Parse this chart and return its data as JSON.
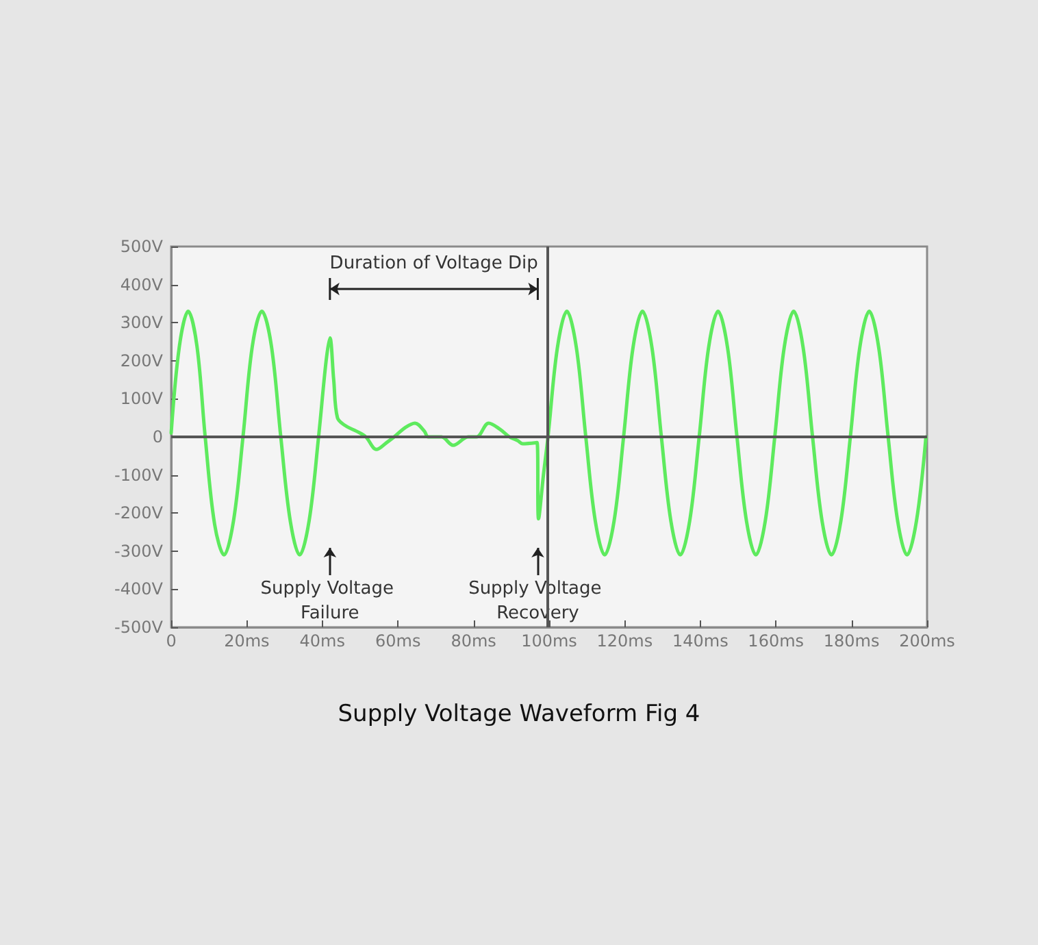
{
  "chart_data": {
    "type": "line",
    "title": "Supply Voltage Waveform Fig 4",
    "series": [
      {
        "color": "#5eea5e",
        "x": [
          0,
          2.2,
          4.5,
          6.8,
          9,
          11.5,
          14,
          16.5,
          19,
          21.5,
          24,
          26.5,
          29,
          31.5,
          34,
          36.5,
          39,
          41,
          42,
          43,
          44,
          46,
          49,
          51.5,
          54.3,
          57,
          59,
          62,
          64.5,
          67,
          68,
          71.5,
          74.6,
          78.6,
          80.8,
          84,
          87,
          89.5,
          91.7,
          93,
          96.8,
          97.2,
          98.5,
          99.7,
          102.2,
          104.7,
          107.2,
          109.7,
          112.2,
          114.7,
          117.2,
          119.7,
          122.2,
          124.7,
          127.2,
          129.7,
          132.2,
          134.7,
          137.2,
          139.7,
          142.2,
          144.7,
          147.2,
          149.7,
          152.2,
          154.7,
          157.2,
          159.7,
          162.2,
          164.7,
          167.2,
          169.7,
          172.2,
          174.7,
          177.2,
          179.7,
          182.2,
          184.7,
          187.2,
          189.7,
          192.2,
          194.7,
          197.2,
          199.7
        ],
        "values": [
          10,
          240,
          330,
          240,
          0,
          -230,
          -310,
          -220,
          0,
          240,
          330,
          240,
          0,
          -220,
          -310,
          -220,
          0,
          200,
          260,
          150,
          50,
          30,
          15,
          0,
          -33,
          -15,
          0,
          25,
          36,
          15,
          0,
          0,
          -22,
          0,
          0,
          36,
          20,
          0,
          -10,
          -18,
          -15,
          -215,
          -100,
          0,
          235,
          330,
          235,
          0,
          -220,
          -310,
          -220,
          0,
          235,
          330,
          235,
          0,
          -220,
          -310,
          -220,
          0,
          235,
          330,
          235,
          0,
          -220,
          -310,
          -220,
          0,
          235,
          330,
          235,
          0,
          -220,
          -310,
          -220,
          0,
          235,
          330,
          235,
          0,
          -220,
          -310,
          -220,
          0
        ]
      }
    ],
    "xlim": [
      0,
      200
    ],
    "xticks": [
      0,
      {
        "value": 20,
        "label": "20ms"
      },
      {
        "value": 40,
        "label": "40ms"
      },
      {
        "value": 60,
        "label": "60ms"
      },
      {
        "value": 80,
        "label": "80ms"
      },
      {
        "value": 100,
        "label": "100ms"
      },
      {
        "value": 120,
        "label": "120ms"
      },
      {
        "value": 140,
        "label": "140ms"
      },
      {
        "value": 160,
        "label": "160ms"
      },
      {
        "value": 180,
        "label": "180ms"
      },
      {
        "value": 200,
        "label": "200ms"
      }
    ],
    "ylim": [
      -500,
      500
    ],
    "yticks": [
      {
        "value": -500,
        "label": "-500V"
      },
      {
        "value": -400,
        "label": "-400V"
      },
      {
        "value": -300,
        "label": "-300V"
      },
      {
        "value": -200,
        "label": "-200V"
      },
      {
        "value": -100,
        "label": "-100V"
      },
      0,
      {
        "value": 100,
        "label": "100V"
      },
      {
        "value": 200,
        "label": "200V"
      },
      {
        "value": 300,
        "label": "300V"
      },
      {
        "value": 400,
        "label": "400V"
      },
      {
        "value": 500,
        "label": "500V"
      }
    ],
    "ref_lines": [
      {
        "axis": "x",
        "value": 99.7,
        "color": "#555555"
      },
      {
        "axis": "y",
        "value": 0,
        "color": "#555555"
      }
    ],
    "annotations": [
      "Duration of Voltage Dip",
      "Supply Voltage Failure",
      "Supply Voltage Recovery"
    ],
    "grid": false,
    "marker": "none",
    "line_style": "solid"
  }
}
